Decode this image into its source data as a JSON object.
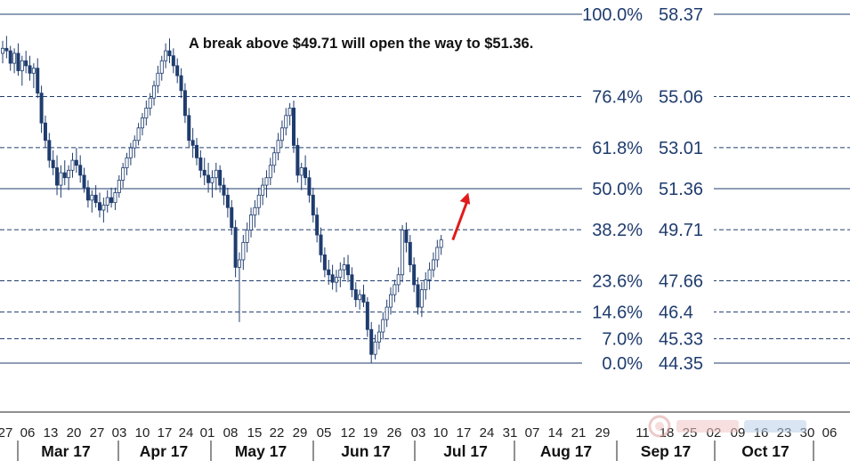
{
  "annotation": "A break above $49.71 will open the way to $51.36.",
  "colors": {
    "fib_line": "#1f3c6e",
    "candle": "#1f3c6e",
    "arrow": "#e01b1b",
    "axis": "#222222"
  },
  "chart_data": {
    "type": "candlestick",
    "title": "",
    "ylim": [
      44.35,
      58.37
    ],
    "fib_levels": [
      {
        "pct": "100.0%",
        "price": "58.37",
        "value": 58.37,
        "style": "solid"
      },
      {
        "pct": "76.4%",
        "price": "55.06",
        "value": 55.06,
        "style": "dashed"
      },
      {
        "pct": "61.8%",
        "price": "53.01",
        "value": 53.01,
        "style": "dashed"
      },
      {
        "pct": "50.0%",
        "price": "51.36",
        "value": 51.36,
        "style": "solid"
      },
      {
        "pct": "38.2%",
        "price": "49.71",
        "value": 49.71,
        "style": "dashed"
      },
      {
        "pct": "23.6%",
        "price": "47.66",
        "value": 47.66,
        "style": "dashed"
      },
      {
        "pct": "14.6%",
        "price": "46.4",
        "value": 46.4,
        "style": "dashed"
      },
      {
        "pct": "7.0%",
        "price": "45.33",
        "value": 45.33,
        "style": "dashed"
      },
      {
        "pct": "0.0%",
        "price": "44.35",
        "value": 44.35,
        "style": "solid"
      }
    ],
    "x_ticks": [
      "27",
      "06",
      "13",
      "20",
      "27",
      "03",
      "10",
      "17",
      "24",
      "01",
      "08",
      "15",
      "22",
      "29",
      "05",
      "12",
      "19",
      "26",
      "03",
      "10",
      "17",
      "24",
      "31",
      "07",
      "14",
      "21",
      "29",
      "11",
      "18",
      "25",
      "02",
      "09",
      "16",
      "23",
      "30",
      "06"
    ],
    "months": [
      "Mar 17",
      "Apr 17",
      "May 17",
      "Jun 17",
      "Jul 17",
      "Aug 17",
      "Sep 17",
      "Oct 17"
    ],
    "candles": [
      [
        56.8,
        57.3,
        56.4,
        57.0
      ],
      [
        57.0,
        57.5,
        56.6,
        56.9
      ],
      [
        56.9,
        57.1,
        56.1,
        56.4
      ],
      [
        56.4,
        57.0,
        56.0,
        56.8
      ],
      [
        56.8,
        57.2,
        55.9,
        56.1
      ],
      [
        56.1,
        56.7,
        55.5,
        56.5
      ],
      [
        56.5,
        56.9,
        56.0,
        56.3
      ],
      [
        56.3,
        56.7,
        55.7,
        56.0
      ],
      [
        56.0,
        56.4,
        55.4,
        56.2
      ],
      [
        56.2,
        56.6,
        55.0,
        55.2
      ],
      [
        55.2,
        55.5,
        53.6,
        54.0
      ],
      [
        54.0,
        54.3,
        53.0,
        53.3
      ],
      [
        53.3,
        53.6,
        52.2,
        52.5
      ],
      [
        52.5,
        52.9,
        51.9,
        52.2
      ],
      [
        52.2,
        52.7,
        51.1,
        51.5
      ],
      [
        51.5,
        52.3,
        51.0,
        52.0
      ],
      [
        52.0,
        52.5,
        51.5,
        51.8
      ],
      [
        51.8,
        52.3,
        51.3,
        52.1
      ],
      [
        52.1,
        52.8,
        51.8,
        52.5
      ],
      [
        52.5,
        53.0,
        52.0,
        52.3
      ],
      [
        52.3,
        52.7,
        51.6,
        51.9
      ],
      [
        51.9,
        52.2,
        51.2,
        51.4
      ],
      [
        51.4,
        51.7,
        50.6,
        50.9
      ],
      [
        50.9,
        51.3,
        50.4,
        51.1
      ],
      [
        51.1,
        51.5,
        50.6,
        50.8
      ],
      [
        50.8,
        51.2,
        50.2,
        50.5
      ],
      [
        50.5,
        51.0,
        50.0,
        50.7
      ],
      [
        50.7,
        51.3,
        50.4,
        51.0
      ],
      [
        51.0,
        51.4,
        50.6,
        50.8
      ],
      [
        50.8,
        51.4,
        50.5,
        51.2
      ],
      [
        51.2,
        51.9,
        51.0,
        51.7
      ],
      [
        51.7,
        52.4,
        51.4,
        52.2
      ],
      [
        52.2,
        52.8,
        51.9,
        52.6
      ],
      [
        52.6,
        53.2,
        52.3,
        53.0
      ],
      [
        53.0,
        53.5,
        52.6,
        53.3
      ],
      [
        53.3,
        54.0,
        53.1,
        53.8
      ],
      [
        53.8,
        54.4,
        53.5,
        54.2
      ],
      [
        54.2,
        54.9,
        53.9,
        54.6
      ],
      [
        54.6,
        55.2,
        54.3,
        55.0
      ],
      [
        55.0,
        55.7,
        54.7,
        55.5
      ],
      [
        55.5,
        56.3,
        55.2,
        56.0
      ],
      [
        56.0,
        56.7,
        55.7,
        56.5
      ],
      [
        56.5,
        57.2,
        56.2,
        56.9
      ],
      [
        56.9,
        57.4,
        56.4,
        56.7
      ],
      [
        56.7,
        57.0,
        56.0,
        56.3
      ],
      [
        56.3,
        56.6,
        55.6,
        55.9
      ],
      [
        55.9,
        56.2,
        55.0,
        55.3
      ],
      [
        55.3,
        55.6,
        54.0,
        54.3
      ],
      [
        54.3,
        54.6,
        53.0,
        53.3
      ],
      [
        53.3,
        53.8,
        52.6,
        53.1
      ],
      [
        53.1,
        53.4,
        52.3,
        52.6
      ],
      [
        52.6,
        52.9,
        51.8,
        52.1
      ],
      [
        52.1,
        52.6,
        51.5,
        51.9
      ],
      [
        51.9,
        52.4,
        51.2,
        51.6
      ],
      [
        51.6,
        52.1,
        51.0,
        51.8
      ],
      [
        51.8,
        52.4,
        51.3,
        52.1
      ],
      [
        52.1,
        52.3,
        51.2,
        51.5
      ],
      [
        51.5,
        51.8,
        50.7,
        51.1
      ],
      [
        51.1,
        51.4,
        50.2,
        50.6
      ],
      [
        50.6,
        50.9,
        49.5,
        49.8
      ],
      [
        49.8,
        50.1,
        47.8,
        48.2
      ],
      [
        48.2,
        48.8,
        46.0,
        48.5
      ],
      [
        48.5,
        49.5,
        48.1,
        49.2
      ],
      [
        49.2,
        50.0,
        48.8,
        49.7
      ],
      [
        49.7,
        50.6,
        49.4,
        50.3
      ],
      [
        50.3,
        50.9,
        49.8,
        50.6
      ],
      [
        50.6,
        51.4,
        50.3,
        51.1
      ],
      [
        51.1,
        51.8,
        50.7,
        51.5
      ],
      [
        51.5,
        52.1,
        51.0,
        51.8
      ],
      [
        51.8,
        52.6,
        51.5,
        52.3
      ],
      [
        52.3,
        53.0,
        52.0,
        52.8
      ],
      [
        52.8,
        53.6,
        52.5,
        53.3
      ],
      [
        53.3,
        54.1,
        53.0,
        53.8
      ],
      [
        53.8,
        54.6,
        53.5,
        54.3
      ],
      [
        54.3,
        54.8,
        53.9,
        54.6
      ],
      [
        54.6,
        54.9,
        52.8,
        53.1
      ],
      [
        53.1,
        53.4,
        51.6,
        51.9
      ],
      [
        51.9,
        52.4,
        51.3,
        52.2
      ],
      [
        52.2,
        52.7,
        51.5,
        51.8
      ],
      [
        51.8,
        52.1,
        50.8,
        51.1
      ],
      [
        51.1,
        51.4,
        50.0,
        50.3
      ],
      [
        50.3,
        50.6,
        49.2,
        49.5
      ],
      [
        49.5,
        49.8,
        48.4,
        48.7
      ],
      [
        48.7,
        49.0,
        47.8,
        48.1
      ],
      [
        48.1,
        48.5,
        47.5,
        47.9
      ],
      [
        47.9,
        48.3,
        47.3,
        47.6
      ],
      [
        47.6,
        48.1,
        47.2,
        47.8
      ],
      [
        47.8,
        48.4,
        47.4,
        48.1
      ],
      [
        48.1,
        48.6,
        47.7,
        48.3
      ],
      [
        48.3,
        48.7,
        47.6,
        47.9
      ],
      [
        47.9,
        48.2,
        47.0,
        47.3
      ],
      [
        47.3,
        47.6,
        46.6,
        46.9
      ],
      [
        46.9,
        47.3,
        46.5,
        47.1
      ],
      [
        47.1,
        47.5,
        46.6,
        46.8
      ],
      [
        46.8,
        47.0,
        45.4,
        45.7
      ],
      [
        45.7,
        46.0,
        44.35,
        44.7
      ],
      [
        44.7,
        45.5,
        44.5,
        45.2
      ],
      [
        45.2,
        45.9,
        44.9,
        45.6
      ],
      [
        45.6,
        46.4,
        45.3,
        46.1
      ],
      [
        46.1,
        46.9,
        45.8,
        46.6
      ],
      [
        46.6,
        47.4,
        46.3,
        47.1
      ],
      [
        47.1,
        47.7,
        46.8,
        47.5
      ],
      [
        47.5,
        48.2,
        47.2,
        47.9
      ],
      [
        47.9,
        49.9,
        47.6,
        49.7
      ],
      [
        49.7,
        50.0,
        48.8,
        49.2
      ],
      [
        49.2,
        49.5,
        48.0,
        48.3
      ],
      [
        48.3,
        48.6,
        47.2,
        47.5
      ],
      [
        47.5,
        47.8,
        46.3,
        46.6
      ],
      [
        46.6,
        47.6,
        46.2,
        47.3
      ],
      [
        47.3,
        48.0,
        46.9,
        47.7
      ],
      [
        47.7,
        48.4,
        47.3,
        48.1
      ],
      [
        48.1,
        48.8,
        47.8,
        48.5
      ],
      [
        48.5,
        49.3,
        48.2,
        49.0
      ],
      [
        49.0,
        49.5,
        48.7,
        49.3
      ]
    ],
    "arrow": {
      "from": [
        116,
        49.3
      ],
      "to": [
        120,
        51.2
      ]
    }
  }
}
